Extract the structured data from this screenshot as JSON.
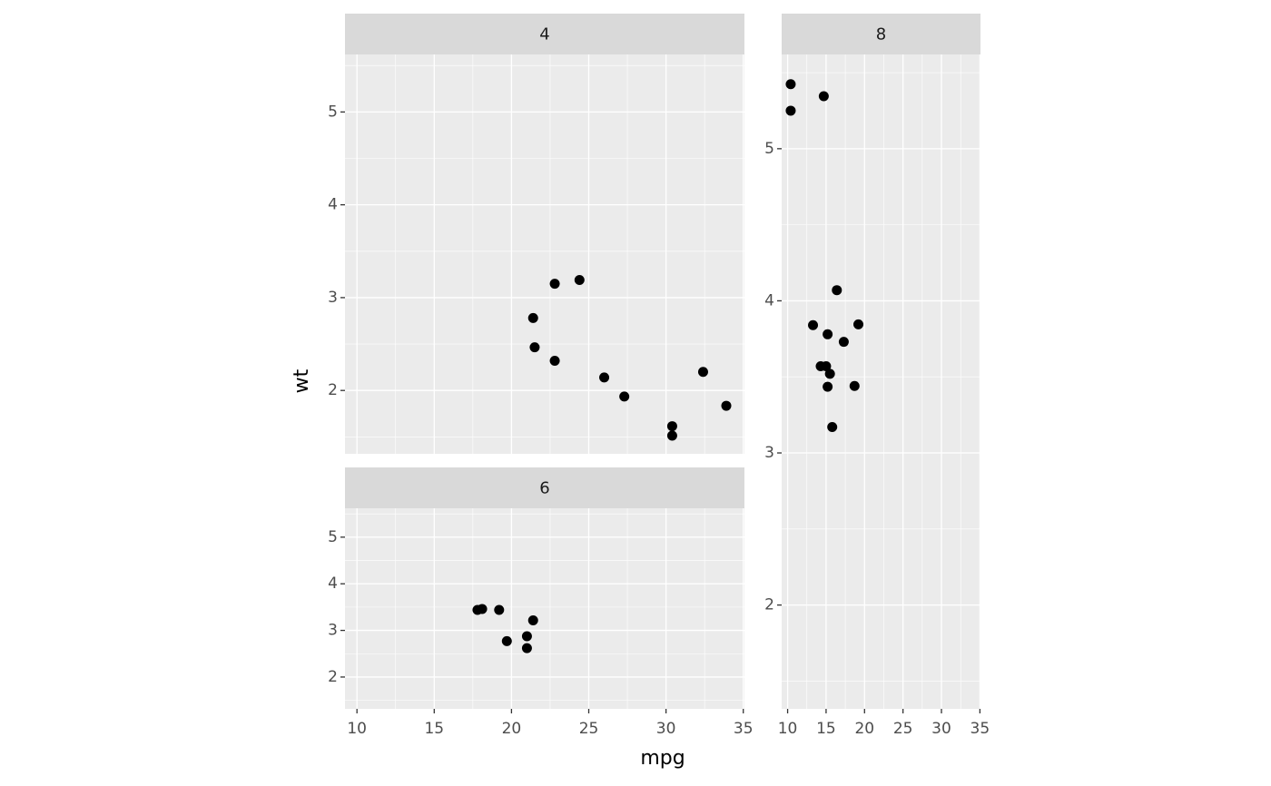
{
  "chart_data": {
    "type": "scatter",
    "xlabel": "mpg",
    "ylabel": "wt",
    "color": "#000000",
    "grid": true,
    "xlim": [
      9.225,
      35.075
    ],
    "ylim": [
      1.3175,
      5.6196
    ],
    "xticks": [
      10,
      15,
      20,
      25,
      30,
      35
    ],
    "yticks": [
      2,
      3,
      4,
      5
    ],
    "panels": [
      {
        "title": "4",
        "x": [
          22.8,
          24.4,
          22.8,
          32.4,
          30.4,
          33.9,
          21.5,
          27.3,
          26.0,
          30.4,
          21.4
        ],
        "y": [
          2.32,
          3.19,
          3.15,
          2.2,
          1.615,
          1.835,
          2.465,
          1.935,
          2.14,
          1.513,
          2.78
        ]
      },
      {
        "title": "6",
        "x": [
          21.0,
          21.0,
          21.4,
          18.1,
          19.2,
          17.8,
          19.7
        ],
        "y": [
          2.62,
          2.875,
          3.215,
          3.46,
          3.44,
          3.44,
          2.77
        ]
      },
      {
        "title": "8",
        "x": [
          18.7,
          14.3,
          16.4,
          17.3,
          15.2,
          10.4,
          10.4,
          14.7,
          15.5,
          15.2,
          13.3,
          19.2,
          15.8,
          15.0
        ],
        "y": [
          3.44,
          3.57,
          4.07,
          3.73,
          3.78,
          5.25,
          5.424,
          5.345,
          3.52,
          3.435,
          3.84,
          3.845,
          3.17,
          3.57
        ]
      }
    ]
  }
}
